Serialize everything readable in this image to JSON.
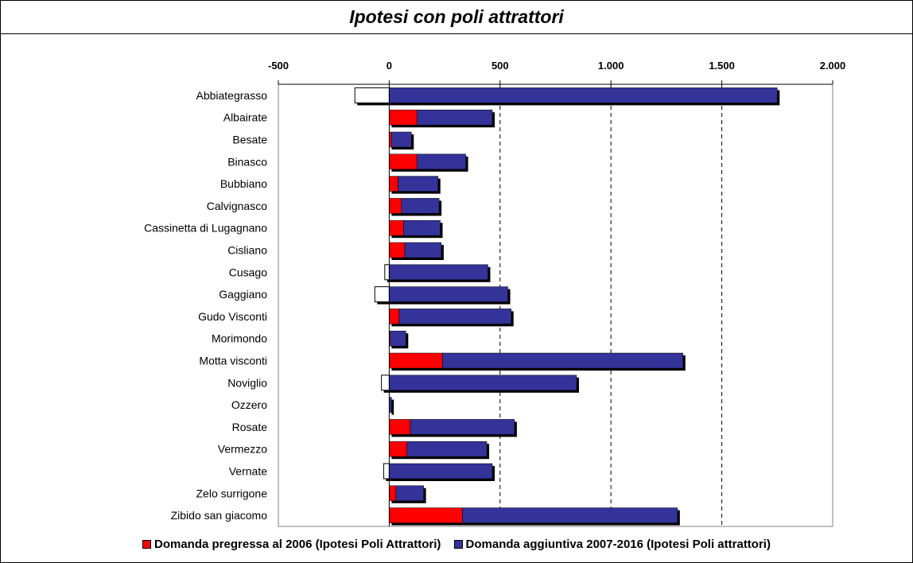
{
  "chart_data": {
    "type": "bar",
    "orientation": "horizontal",
    "stacked": true,
    "title": "Ipotesi con poli attrattori",
    "x_ticks": [
      -500,
      0,
      500,
      1000,
      1500,
      2000
    ],
    "x_tick_labels": [
      "-500",
      "0",
      "500",
      "1.000",
      "1.500",
      "2.000"
    ],
    "xlim": [
      -500,
      2000
    ],
    "grid": "vertical dashed",
    "legend_position": "bottom",
    "categories": [
      "Abbiategrasso",
      "Albairate",
      "Besate",
      "Binasco",
      "Bubbiano",
      "Calvignasco",
      "Cassinetta di Lugagnano",
      "Cisliano",
      "Cusago",
      "Gaggiano",
      "Gudo Visconti",
      "Morimondo",
      "Motta visconti",
      "Noviglio",
      "Ozzero",
      "Rosate",
      "Vermezzo",
      "Vernate",
      "Zelo surrigone",
      "Zibido san giacomo"
    ],
    "series": [
      {
        "name": "Domanda pregressa al 2006 (Ipotesi Poli Attrattori)",
        "color": "#ff0000",
        "values": [
          -155,
          125,
          10,
          125,
          40,
          55,
          65,
          70,
          -20,
          -65,
          45,
          5,
          240,
          -35,
          0,
          95,
          80,
          -25,
          30,
          330
        ]
      },
      {
        "name": "Domanda aggiuntiva 2007-2016 (Ipotesi Poli attrattori)",
        "color": "#333399",
        "values": [
          1750,
          340,
          90,
          220,
          180,
          170,
          165,
          165,
          445,
          535,
          505,
          70,
          1085,
          845,
          10,
          470,
          360,
          465,
          125,
          970
        ]
      }
    ]
  }
}
